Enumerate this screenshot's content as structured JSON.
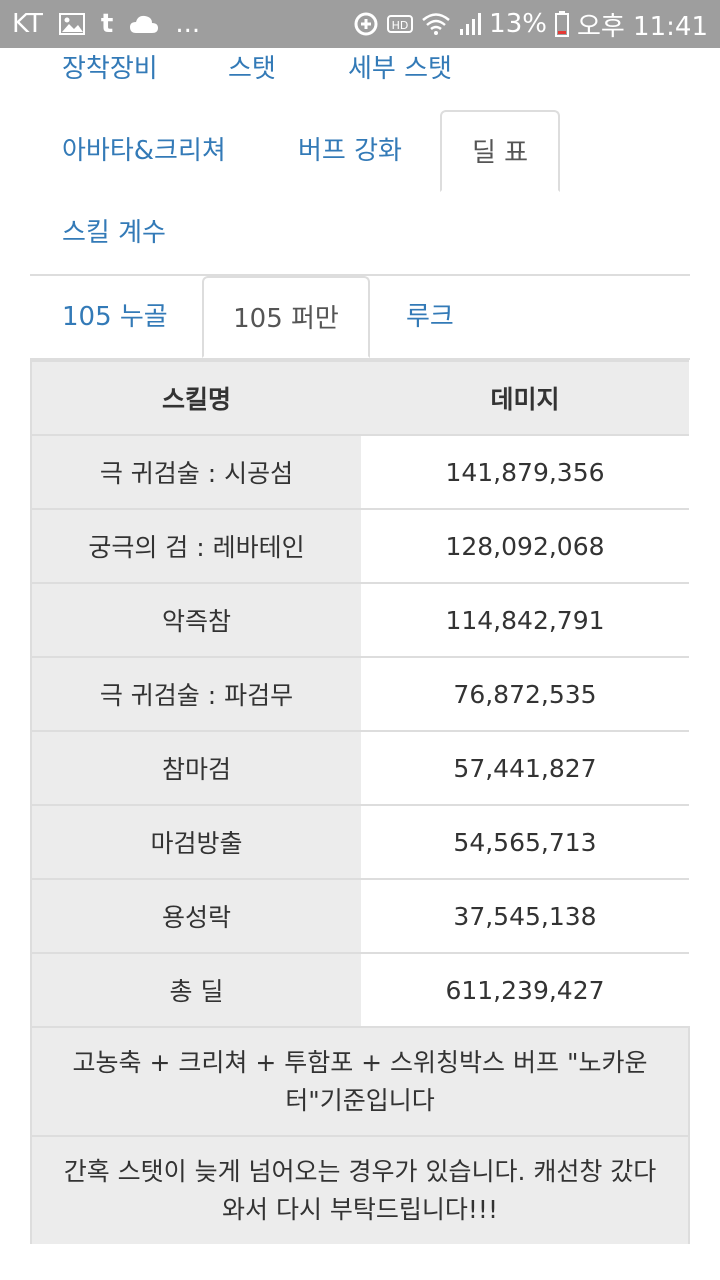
{
  "status": {
    "carrier": "KT",
    "left_icons": [
      "image-icon",
      "tumblr-icon",
      "cloud-icon"
    ],
    "more": "...",
    "battery": "13%",
    "time": "오후 11:41"
  },
  "tabs_primary": [
    {
      "label": "장착장비"
    },
    {
      "label": "스탯"
    },
    {
      "label": "세부 스탯"
    },
    {
      "label": "아바타&크리쳐"
    },
    {
      "label": "버프 강화"
    },
    {
      "label": "딜 표",
      "active": true
    },
    {
      "label": "스킬 계수"
    }
  ],
  "tabs_secondary": [
    {
      "label": "105 누골"
    },
    {
      "label": "105 퍼만",
      "active": true
    },
    {
      "label": "루크"
    }
  ],
  "table": {
    "headers": [
      "스킬명",
      "데미지"
    ],
    "rows": [
      {
        "name": "극 귀검술 : 시공섬",
        "value": "141,879,356"
      },
      {
        "name": "궁극의 검 : 레바테인",
        "value": "128,092,068"
      },
      {
        "name": "악즉참",
        "value": "114,842,791"
      },
      {
        "name": "극 귀검술 : 파검무",
        "value": "76,872,535"
      },
      {
        "name": "참마검",
        "value": "57,441,827"
      },
      {
        "name": "마검방출",
        "value": "54,565,713"
      },
      {
        "name": "용성락",
        "value": "37,545,138"
      },
      {
        "name": "총 딜",
        "value": "611,239,427"
      }
    ],
    "notes": [
      "고농축 + 크리쳐 + 투함포 + 스위칭박스 버프 \"노카운터\"기준입니다",
      "간혹 스탯이 늦게 넘어오는 경우가 있습니다. 캐선창 갔다와서 다시 부탁드립니다!!!"
    ]
  }
}
